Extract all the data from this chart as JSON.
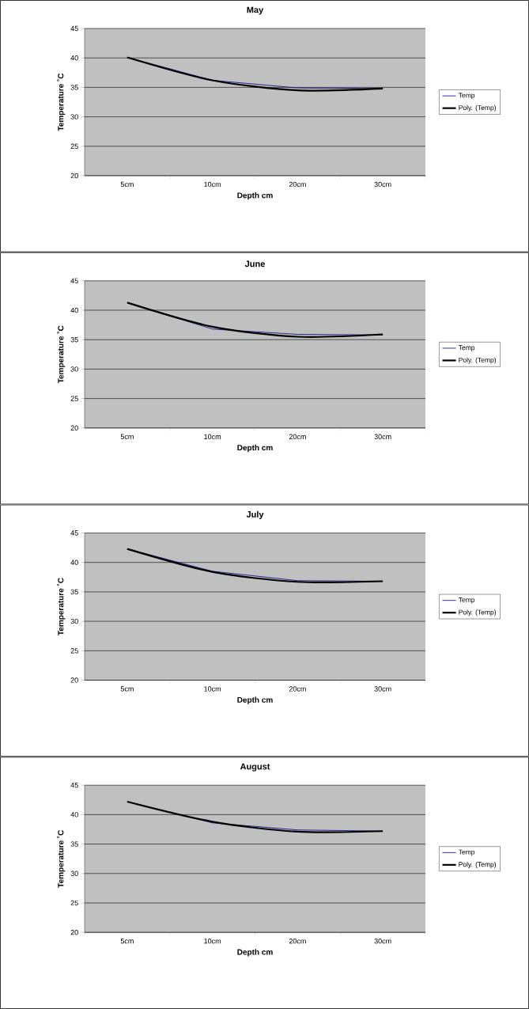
{
  "chart_data": [
    {
      "type": "line",
      "title": "May",
      "xlabel": "Depth cm",
      "ylabel": "Temperature ˚C",
      "categories": [
        "5cm",
        "10cm",
        "20cm",
        "30cm"
      ],
      "ylim": [
        20,
        45
      ],
      "yticks": [
        20,
        25,
        30,
        35,
        40,
        45
      ],
      "grid": "y",
      "legend": "right",
      "marker": "none",
      "series": [
        {
          "name": "Temp",
          "color": "#000080",
          "values": [
            40.1,
            36.2,
            34.9,
            34.8
          ]
        },
        {
          "name": "Poly. (Temp)",
          "color": "#000000",
          "values": [
            40.1,
            36.2,
            34.5,
            34.8
          ]
        }
      ]
    },
    {
      "type": "line",
      "title": "June",
      "xlabel": "Depth cm",
      "ylabel": "Temperature ˚C",
      "categories": [
        "5cm",
        "10cm",
        "20cm",
        "30cm"
      ],
      "ylim": [
        20,
        45
      ],
      "yticks": [
        20,
        25,
        30,
        35,
        40,
        45
      ],
      "grid": "y",
      "legend": "right",
      "marker": "none",
      "series": [
        {
          "name": "Temp",
          "color": "#000080",
          "values": [
            41.3,
            36.8,
            35.9,
            35.8
          ]
        },
        {
          "name": "Poly. (Temp)",
          "color": "#000000",
          "values": [
            41.3,
            37.2,
            35.5,
            35.9
          ]
        }
      ]
    },
    {
      "type": "line",
      "title": "July",
      "xlabel": "Depth cm",
      "ylabel": "Temperature ˚C",
      "categories": [
        "5cm",
        "10cm",
        "20cm",
        "30cm"
      ],
      "ylim": [
        20,
        45
      ],
      "yticks": [
        20,
        25,
        30,
        35,
        40,
        45
      ],
      "grid": "y",
      "legend": "right",
      "marker": "none",
      "series": [
        {
          "name": "Temp",
          "color": "#000080",
          "values": [
            42.3,
            38.5,
            36.9,
            36.8
          ]
        },
        {
          "name": "Poly. (Temp)",
          "color": "#000000",
          "values": [
            42.3,
            38.4,
            36.7,
            36.8
          ]
        }
      ]
    },
    {
      "type": "line",
      "title": "August",
      "xlabel": "Depth cm",
      "ylabel": "Temperature ˚C",
      "categories": [
        "5cm",
        "10cm",
        "20cm",
        "30cm"
      ],
      "ylim": [
        20,
        45
      ],
      "yticks": [
        20,
        25,
        30,
        35,
        40,
        45
      ],
      "grid": "y",
      "legend": "right",
      "marker": "none",
      "series": [
        {
          "name": "Temp",
          "color": "#000080",
          "values": [
            42.2,
            38.6,
            37.4,
            37.2
          ]
        },
        {
          "name": "Poly. (Temp)",
          "color": "#000000",
          "values": [
            42.2,
            38.8,
            37.1,
            37.2
          ]
        }
      ]
    }
  ]
}
